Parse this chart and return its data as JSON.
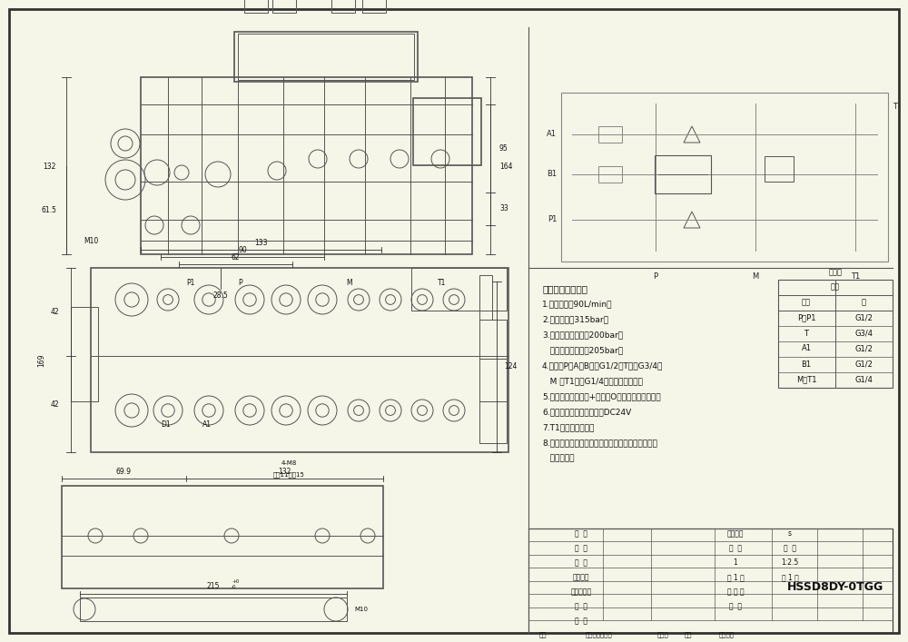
{
  "bg_color": "#f5f5e8",
  "border_color": "#333333",
  "line_color": "#555555",
  "dim_color": "#333333",
  "drawing_number": "HSSD8DY-0TGG",
  "scale": "1:2.5",
  "tech_notes": [
    "技术要求和参数：",
    "1.最大流量：90L/min；",
    "2.最高压力：315bar；",
    "3.安全阀调定压力：200bar；",
    "   过载鄀调定压力：205bar；",
    "4.油口：P、A、B口为G1/2，T口为G3/4；",
    "   M 、T1口为G1/4；均为平面密封；",
    "5.控制方式：电液控+手动，O型阀杆，弹簧复位；",
    "6.线圈：三插线圈，电压：DC24V",
    "7.T1口直接接油筱；",
    "8.阀体表面磷化处理，安全鄀及螺堵镀锌，支架后盖",
    "   为铝本色。"
  ],
  "thread_table": {
    "header1": "螺纹规",
    "header2": "鄀体",
    "col1": "接口",
    "col2": "格",
    "rows": [
      [
        "P、P1",
        "G1/2"
      ],
      [
        "T",
        "G3/4"
      ],
      [
        "A1",
        "G1/2"
      ],
      [
        "B1",
        "G1/2"
      ],
      [
        "M、T1",
        "G1/4"
      ]
    ]
  },
  "title_block_texts": [
    [
      640,
      588,
      "设  计",
      5.5
    ],
    [
      640,
      604,
      "制  图",
      5.5
    ],
    [
      640,
      620,
      "校  对",
      5.5
    ],
    [
      640,
      636,
      "工艺检查",
      5.5
    ],
    [
      640,
      652,
      "标准化检查",
      5.5
    ],
    [
      640,
      668,
      "审  核",
      5.5
    ],
    [
      640,
      684,
      "批  准",
      5.5
    ],
    [
      810,
      588,
      "图样标记",
      5.5
    ],
    [
      870,
      588,
      "s",
      5.5
    ],
    [
      810,
      604,
      "数  量",
      5.5
    ],
    [
      870,
      604,
      "比  例",
      5.5
    ],
    [
      810,
      620,
      "1",
      5.5
    ],
    [
      870,
      620,
      "1:2.5",
      5.5
    ],
    [
      810,
      636,
      "共 1 张",
      5.5
    ],
    [
      870,
      636,
      "第 1 张",
      5.5
    ],
    [
      810,
      652,
      "版 本 号",
      5.5
    ],
    [
      810,
      668,
      "类  型",
      5.5
    ]
  ],
  "footer_texts": [
    [
      598,
      699,
      "标记",
      5
    ],
    [
      660,
      699,
      "更改内容或依据",
      5
    ],
    [
      730,
      699,
      "更改人",
      5
    ],
    [
      758,
      699,
      "日期",
      5
    ],
    [
      800,
      699,
      "订单编号",
      5
    ]
  ]
}
